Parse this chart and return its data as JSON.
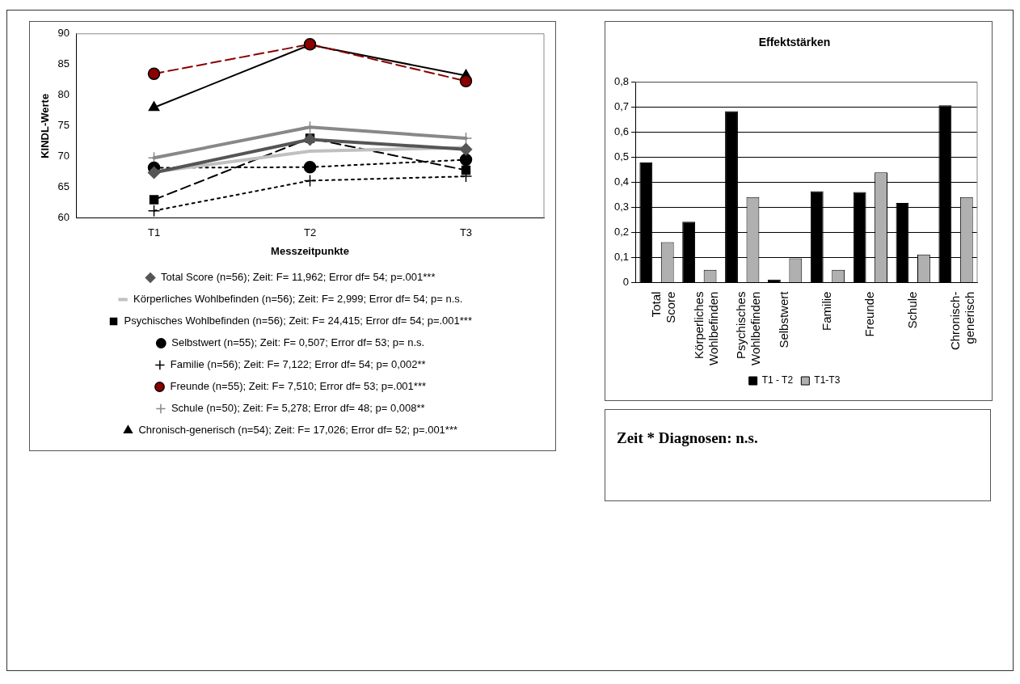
{
  "chart_data": [
    {
      "type": "line",
      "xlabel": "Messzeitpunkte",
      "ylabel": "KINDL-Werte",
      "categories": [
        "T1",
        "T2",
        "T3"
      ],
      "ylim": [
        60,
        90
      ],
      "yticks": [
        60,
        65,
        70,
        75,
        80,
        85,
        90
      ],
      "grid": false,
      "legend": "bottom",
      "series": [
        {
          "name": "Total Score (n=56); Zeit: F= 11,962; Error df= 54; p=.001***",
          "color": "#555555",
          "marker": "diamond",
          "line_style": "solid",
          "values": [
            67.4,
            72.8,
            71.2
          ]
        },
        {
          "name": "Körperliches Wohlbefinden (n=56); Zeit: F= 2,999; Error df= 54; p= n.s.",
          "color": "#c0c0c0",
          "marker": "none",
          "line_style": "solid",
          "values": [
            67.5,
            70.9,
            71.5
          ]
        },
        {
          "name": "Psychisches Wohlbefinden (n=56); Zeit: F= 24,415; Error df= 54; p=.001***",
          "color": "#000000",
          "marker": "square",
          "line_style": "dashed",
          "values": [
            63,
            73,
            67.8
          ]
        },
        {
          "name": "Selbstwert (n=55); Zeit: F= 0,507; Error df= 53; p= n.s.",
          "color": "#000000",
          "marker": "circle",
          "line_style": "dotted",
          "values": [
            68.2,
            68.3,
            69.5
          ]
        },
        {
          "name": "Familie (n=56); Zeit: F= 7,122; Error df= 54; p= 0,002**",
          "color": "#000000",
          "marker": "cross",
          "line_style": "dotted",
          "values": [
            61.2,
            66.1,
            66.8
          ]
        },
        {
          "name": "Freunde (n=55); Zeit: F= 7,510; Error df= 53; p=.001***",
          "color": "#8b0000",
          "marker": "circle",
          "line_style": "dashed",
          "values": [
            83.5,
            88.3,
            82.3
          ]
        },
        {
          "name": "Schule (n=50); Zeit: F= 5,278; Error df= 48; p= 0,008**",
          "color": "#888888",
          "marker": "cross",
          "line_style": "solid",
          "values": [
            69.8,
            74.8,
            73
          ]
        },
        {
          "name": "Chronisch-generisch (n=54); Zeit: F= 17,026; Error df= 52; p=.001***",
          "color": "#000000",
          "marker": "triangle",
          "line_style": "solid",
          "values": [
            78,
            88.2,
            83.2
          ]
        }
      ]
    },
    {
      "type": "bar",
      "title": "Effektstärken",
      "categories": [
        "Total Score",
        "Körperliches Wohlbefinden",
        "Psychisches Wohlbefinden",
        "Selbstwert",
        "Familie",
        "Freunde",
        "Schule",
        "Chronisch-generisch"
      ],
      "ylim": [
        0,
        0.8
      ],
      "yticks": [
        0,
        {
          "value": 0.1,
          "label": "0,1"
        },
        {
          "value": 0.2,
          "label": "0,2"
        },
        {
          "value": 0.3,
          "label": "0,3"
        },
        {
          "value": 0.4,
          "label": "0,4"
        },
        {
          "value": 0.5,
          "label": "0,5"
        },
        {
          "value": 0.6,
          "label": "0,6"
        },
        {
          "value": 0.7,
          "label": "0,7"
        },
        {
          "value": 0.8,
          "label": "0,8"
        }
      ],
      "grid": "y",
      "legend": "bottom",
      "series": [
        {
          "name": "T1 - T2",
          "color": "#000000",
          "values": [
            0.48,
            0.243,
            0.685,
            0.012,
            0.365,
            0.362,
            0.318,
            0.708
          ]
        },
        {
          "name": "T1-T3",
          "color": "#b0b0b0",
          "values": [
            0.162,
            0.051,
            0.342,
            0.097,
            0.051,
            0.44,
            0.112,
            0.342
          ]
        }
      ]
    },
    {
      "type": "other",
      "annotations": [
        "Zeit * Diagnosen: n.s."
      ]
    }
  ]
}
